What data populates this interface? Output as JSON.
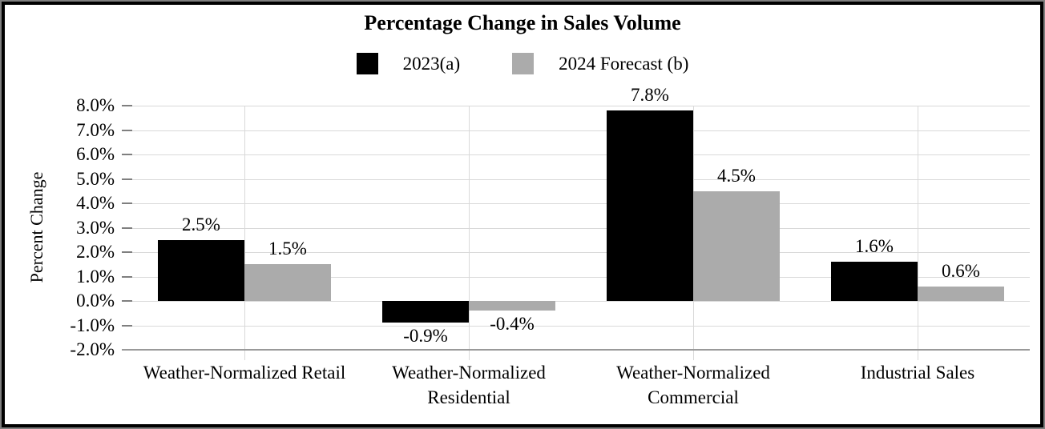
{
  "chart_data": {
    "type": "bar",
    "title": "Percentage Change in Sales Volume",
    "ylabel": "Percent Change",
    "xlabel": "",
    "categories": [
      "Weather-Normalized Retail",
      "Weather-Normalized Residential",
      "Weather-Normalized Commercial",
      "Industrial Sales"
    ],
    "series": [
      {
        "name": "2023(a)",
        "color": "#000000",
        "values": [
          2.5,
          -0.9,
          7.8,
          1.6
        ],
        "labels": [
          "2.5%",
          "-0.9%",
          "7.8%",
          "1.6%"
        ]
      },
      {
        "name": "2024 Forecast (b)",
        "color": "#ababab",
        "values": [
          1.5,
          -0.4,
          4.5,
          0.6
        ],
        "labels": [
          "1.5%",
          "-0.4%",
          "4.5%",
          "0.6%"
        ]
      }
    ],
    "y_axis": {
      "min": -2.0,
      "max": 8.0,
      "step": 1.0,
      "tick_labels": [
        "8.0%",
        "7.0%",
        "6.0%",
        "5.0%",
        "4.0%",
        "3.0%",
        "2.0%",
        "1.0%",
        "0.0%",
        "-1.0%",
        "-2.0%"
      ]
    },
    "legend_position": "top",
    "grid": {
      "horizontal": true,
      "vertical_at_category_centers": true
    },
    "colors": {
      "gridline": "#d9d9d9",
      "axis_line": "#999999",
      "tick": "#7f7f7f",
      "text": "#000000",
      "background": "#ffffff"
    }
  }
}
